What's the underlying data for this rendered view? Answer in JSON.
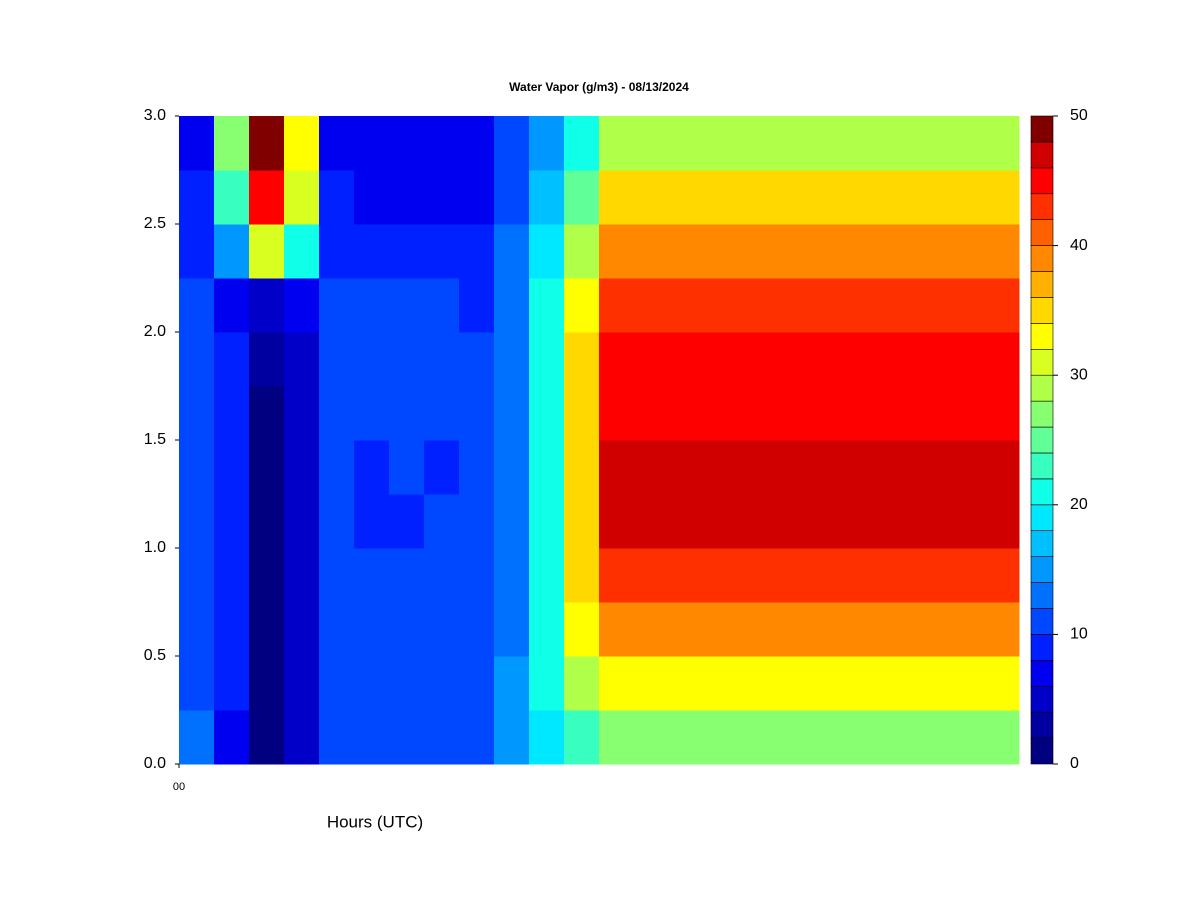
{
  "chart_data": {
    "type": "contour",
    "title": "Water Vapor (g/m3) - 08/13/2024",
    "x_label": "Hours (UTC)",
    "x": [
      0.5,
      1.5,
      2.5,
      3.5,
      4.5,
      5.5,
      6.5,
      7.5,
      8.5,
      9.5,
      10.5,
      11.5,
      12.5,
      13.5,
      14.5,
      15.5,
      16.5,
      17.5,
      18.5,
      19.5,
      20.5,
      21.5,
      22.5,
      23.5
    ],
    "y": [
      0.125,
      0.375,
      0.625,
      0.875,
      1.125,
      1.375,
      1.625,
      1.875,
      2.125,
      2.375,
      2.625,
      2.875
    ],
    "z": [
      [
        13,
        7,
        1,
        5,
        11,
        11,
        11,
        11,
        11,
        14,
        18,
        22,
        26,
        26,
        26,
        26,
        26,
        26,
        26,
        26,
        26,
        26,
        26,
        26
      ],
      [
        11,
        8,
        1,
        5,
        11,
        11,
        11,
        11,
        11,
        14,
        20,
        28,
        32,
        32,
        32,
        32,
        32,
        32,
        32,
        32,
        32,
        32,
        32,
        32
      ],
      [
        10,
        8,
        1,
        5,
        11,
        11,
        11,
        11,
        11,
        13,
        20,
        32,
        38,
        38,
        38,
        38,
        38,
        38,
        38,
        38,
        38,
        38,
        38,
        38
      ],
      [
        11,
        8,
        1,
        5,
        11,
        11,
        11,
        11,
        11,
        13,
        20,
        34,
        43,
        43,
        43,
        43,
        43,
        43,
        43,
        43,
        43,
        43,
        43,
        43
      ],
      [
        11,
        8,
        1,
        5,
        11,
        9,
        9,
        11,
        11,
        13,
        20,
        34,
        46,
        46,
        46,
        46,
        46,
        46,
        46,
        46,
        46,
        46,
        46,
        46
      ],
      [
        11,
        8,
        1,
        5,
        11,
        9,
        11,
        9,
        11,
        13,
        20,
        34,
        46,
        46,
        46,
        46,
        46,
        46,
        46,
        46,
        46,
        46,
        46,
        46
      ],
      [
        11,
        8,
        1,
        5,
        11,
        11,
        11,
        11,
        11,
        13,
        20,
        34,
        45,
        45,
        45,
        45,
        45,
        45,
        45,
        45,
        45,
        45,
        45,
        45
      ],
      [
        11,
        8,
        2,
        5,
        11,
        11,
        11,
        11,
        11,
        13,
        20,
        34,
        45,
        45,
        45,
        45,
        45,
        45,
        45,
        45,
        45,
        45,
        45,
        45
      ],
      [
        10,
        7,
        5,
        7,
        10,
        10,
        10,
        10,
        9,
        13,
        20,
        32,
        43,
        43,
        43,
        43,
        43,
        43,
        43,
        43,
        43,
        43,
        43,
        43
      ],
      [
        9,
        14,
        30,
        20,
        9,
        8,
        8,
        8,
        8,
        12,
        18,
        28,
        39,
        39,
        39,
        39,
        39,
        39,
        39,
        39,
        39,
        39,
        39,
        39
      ],
      [
        8,
        22,
        44,
        30,
        8,
        7,
        7,
        7,
        7,
        11,
        16,
        24,
        35,
        35,
        35,
        35,
        35,
        35,
        35,
        35,
        35,
        35,
        35,
        35
      ],
      [
        7,
        26,
        49,
        32,
        6,
        6,
        6,
        6,
        6,
        10,
        15,
        20,
        29,
        29,
        29,
        29,
        29,
        29,
        29,
        29,
        29,
        29,
        29,
        29
      ]
    ],
    "xlim": [
      0,
      24
    ],
    "xticks": [
      {
        "value": 0,
        "label": "00"
      }
    ],
    "ylim": [
      0,
      3
    ],
    "yticks": [
      {
        "value": 0,
        "label": "0.0"
      },
      0.5,
      {
        "value": 1,
        "label": "1.0"
      },
      1.5,
      {
        "value": 2,
        "label": "2.0"
      },
      2.5,
      {
        "value": 3,
        "label": "3.0"
      }
    ],
    "levels": [
      0,
      2,
      4,
      6,
      8,
      10,
      12,
      14,
      16,
      18,
      20,
      22,
      24,
      26,
      28,
      30,
      32,
      34,
      36,
      38,
      40,
      42,
      44,
      46,
      48,
      50
    ],
    "colors": [
      "#000080",
      "#0000a0",
      "#0000c8",
      "#0000f0",
      "#0020ff",
      "#0048ff",
      "#0070ff",
      "#0098ff",
      "#00c0ff",
      "#00e8ff",
      "#10ffe8",
      "#38ffc0",
      "#60ff98",
      "#88ff70",
      "#b0ff48",
      "#d8ff20",
      "#ffff00",
      "#ffd800",
      "#ffb000",
      "#ff8800",
      "#ff6000",
      "#ff3000",
      "#ff0000",
      "#d00000",
      "#800000"
    ],
    "zticks": [
      0,
      10,
      20,
      30,
      40,
      50
    ],
    "legend": "right"
  }
}
